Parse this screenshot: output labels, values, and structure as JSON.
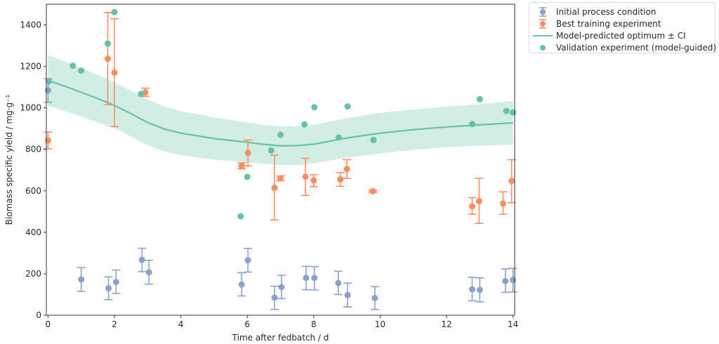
{
  "chart_data": {
    "type": "scatter",
    "title": "",
    "xlabel": "Time after fedbatch / d",
    "ylabel": "Biomass specific yield / mg·g⁻¹",
    "xlim": [
      -0.05,
      14.05
    ],
    "ylim": [
      0,
      1500
    ],
    "xticks": [
      0,
      2,
      4,
      6,
      8,
      10,
      12,
      14
    ],
    "yticks": [
      0,
      200,
      400,
      600,
      800,
      1000,
      1200,
      1400
    ],
    "grid": false,
    "legend_position": "outside-top-right",
    "colors": {
      "initial": "#8da0cb",
      "best": "#fc8d62",
      "model": "#66c2a5",
      "band": "#66c2a5",
      "validation": "#66c2a5"
    },
    "series": [
      {
        "name": "Initial process condition",
        "kind": "errorbar",
        "points": [
          {
            "x": 0.0,
            "y": 1085,
            "lo": 1027,
            "hi": 1141
          },
          {
            "x": 1.0,
            "y": 173,
            "lo": 115,
            "hi": 230
          },
          {
            "x": 1.82,
            "y": 130,
            "lo": 75,
            "hi": 185
          },
          {
            "x": 2.05,
            "y": 160,
            "lo": 105,
            "hi": 218
          },
          {
            "x": 2.83,
            "y": 267,
            "lo": 210,
            "hi": 323
          },
          {
            "x": 3.04,
            "y": 207,
            "lo": 150,
            "hi": 265
          },
          {
            "x": 5.83,
            "y": 148,
            "lo": 93,
            "hi": 205
          },
          {
            "x": 6.02,
            "y": 265,
            "lo": 208,
            "hi": 322
          },
          {
            "x": 6.82,
            "y": 85,
            "lo": 28,
            "hi": 140
          },
          {
            "x": 7.03,
            "y": 136,
            "lo": 80,
            "hi": 193
          },
          {
            "x": 7.77,
            "y": 180,
            "lo": 123,
            "hi": 236
          },
          {
            "x": 8.02,
            "y": 180,
            "lo": 122,
            "hi": 234
          },
          {
            "x": 8.74,
            "y": 155,
            "lo": 100,
            "hi": 212
          },
          {
            "x": 9.02,
            "y": 97,
            "lo": 40,
            "hi": 155
          },
          {
            "x": 9.84,
            "y": 83,
            "lo": 28,
            "hi": 138
          },
          {
            "x": 12.77,
            "y": 125,
            "lo": 70,
            "hi": 183
          },
          {
            "x": 13.0,
            "y": 122,
            "lo": 65,
            "hi": 180
          },
          {
            "x": 13.77,
            "y": 165,
            "lo": 110,
            "hi": 223
          },
          {
            "x": 14.0,
            "y": 170,
            "lo": 112,
            "hi": 226
          }
        ]
      },
      {
        "name": "Best training experiment",
        "kind": "errorbar",
        "points": [
          {
            "x": 0.0,
            "y": 843,
            "lo": 803,
            "hi": 883
          },
          {
            "x": 1.8,
            "y": 1237,
            "lo": 1015,
            "hi": 1460
          },
          {
            "x": 2.0,
            "y": 1170,
            "lo": 910,
            "hi": 1430
          },
          {
            "x": 2.93,
            "y": 1075,
            "lo": 1055,
            "hi": 1095
          },
          {
            "x": 5.83,
            "y": 720,
            "lo": 706,
            "hi": 735
          },
          {
            "x": 6.02,
            "y": 783,
            "lo": 720,
            "hi": 845
          },
          {
            "x": 6.82,
            "y": 615,
            "lo": 460,
            "hi": 772
          },
          {
            "x": 7.0,
            "y": 660,
            "lo": 648,
            "hi": 672
          },
          {
            "x": 7.75,
            "y": 668,
            "lo": 578,
            "hi": 757
          },
          {
            "x": 8.0,
            "y": 650,
            "lo": 620,
            "hi": 678
          },
          {
            "x": 8.8,
            "y": 655,
            "lo": 622,
            "hi": 688
          },
          {
            "x": 9.0,
            "y": 705,
            "lo": 660,
            "hi": 750
          },
          {
            "x": 9.78,
            "y": 598,
            "lo": 593,
            "hi": 603
          },
          {
            "x": 12.77,
            "y": 525,
            "lo": 487,
            "hi": 567
          },
          {
            "x": 12.98,
            "y": 550,
            "lo": 443,
            "hi": 660
          },
          {
            "x": 13.7,
            "y": 538,
            "lo": 487,
            "hi": 595
          },
          {
            "x": 13.96,
            "y": 648,
            "lo": 543,
            "hi": 750
          }
        ]
      },
      {
        "name": "Model-predicted optimum ± CI",
        "kind": "line-band",
        "x": [
          0,
          0.5,
          1.0,
          1.5,
          2.0,
          2.5,
          3.0,
          3.5,
          4.0,
          5.0,
          6.0,
          6.5,
          7.0,
          7.5,
          8.0,
          8.5,
          9.0,
          10.0,
          11.0,
          12.0,
          13.0,
          14.0
        ],
        "y": [
          1132,
          1105,
          1075,
          1045,
          1012,
          972,
          930,
          898,
          878,
          852,
          834,
          824,
          817,
          818,
          825,
          840,
          855,
          878,
          895,
          908,
          918,
          928
        ],
        "lower": [
          1010,
          985,
          958,
          930,
          902,
          862,
          820,
          790,
          772,
          750,
          738,
          730,
          724,
          725,
          732,
          746,
          760,
          780,
          798,
          810,
          818,
          823
        ],
        "upper": [
          1254,
          1225,
          1192,
          1160,
          1122,
          1082,
          1040,
          1006,
          984,
          954,
          930,
          918,
          910,
          911,
          918,
          934,
          950,
          976,
          992,
          1006,
          1018,
          1033
        ]
      },
      {
        "name": "Validation experiment (model-guided)",
        "kind": "scatter",
        "points": [
          {
            "x": 0.02,
            "y": 1128
          },
          {
            "x": 0.75,
            "y": 1203
          },
          {
            "x": 1.0,
            "y": 1180
          },
          {
            "x": 1.8,
            "y": 1310
          },
          {
            "x": 2.0,
            "y": 1462
          },
          {
            "x": 2.8,
            "y": 1067
          },
          {
            "x": 5.8,
            "y": 477
          },
          {
            "x": 6.0,
            "y": 667
          },
          {
            "x": 6.72,
            "y": 795
          },
          {
            "x": 7.0,
            "y": 870
          },
          {
            "x": 7.72,
            "y": 920
          },
          {
            "x": 8.02,
            "y": 1003
          },
          {
            "x": 8.75,
            "y": 857
          },
          {
            "x": 9.02,
            "y": 1007
          },
          {
            "x": 9.8,
            "y": 845
          },
          {
            "x": 12.77,
            "y": 922
          },
          {
            "x": 13.0,
            "y": 1042
          },
          {
            "x": 13.8,
            "y": 985
          },
          {
            "x": 14.0,
            "y": 978
          }
        ]
      }
    ]
  }
}
